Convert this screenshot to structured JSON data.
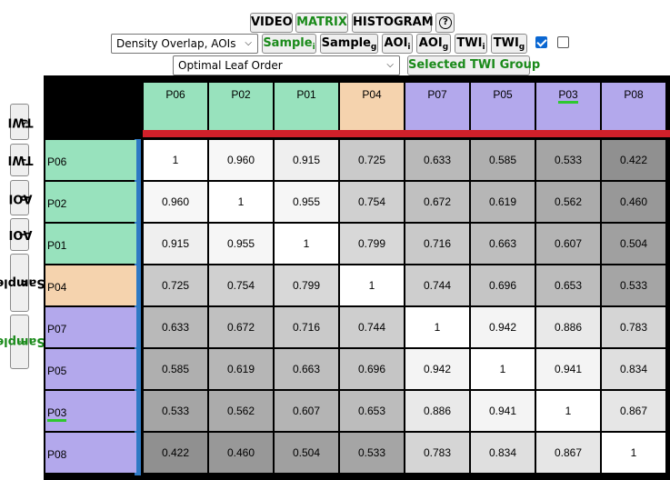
{
  "toolbar": {
    "video": "VIDEO",
    "matrix": "MATRIX",
    "histogram": "HISTOGRAM",
    "help": "?",
    "select_metric": "Density Overlap, AOIs",
    "sample_i": "Sample",
    "sample_g": "Sample",
    "aoi_i": "AOI",
    "aoi_g": "AOI",
    "twi_i": "TWI",
    "twi_g": "TWI",
    "sub_i": "i",
    "sub_g": "g",
    "checkbox1_checked": true,
    "checkbox2_checked": false,
    "select_order": "Optimal Leaf Order",
    "selected_group": "Selected TWI Group"
  },
  "colors": {
    "green": "#98e2bd",
    "orange": "#f5d3ae",
    "purple": "#b3a8ec",
    "red_bar": "#d0202a",
    "blue_bar": "#2f79c4",
    "active_text": "#1a8a1a"
  },
  "matrix": {
    "labels": [
      "P06",
      "P02",
      "P01",
      "P04",
      "P07",
      "P05",
      "P03",
      "P08"
    ],
    "groups": [
      "green",
      "green",
      "green",
      "orange",
      "purple",
      "purple",
      "purple",
      "purple"
    ],
    "highlighted": "P03",
    "values": [
      [
        "1",
        "0.960",
        "0.915",
        "0.725",
        "0.633",
        "0.585",
        "0.533",
        "0.422"
      ],
      [
        "0.960",
        "1",
        "0.955",
        "0.754",
        "0.672",
        "0.619",
        "0.562",
        "0.460"
      ],
      [
        "0.915",
        "0.955",
        "1",
        "0.799",
        "0.716",
        "0.663",
        "0.607",
        "0.504"
      ],
      [
        "0.725",
        "0.754",
        "0.799",
        "1",
        "0.744",
        "0.696",
        "0.653",
        "0.533"
      ],
      [
        "0.633",
        "0.672",
        "0.716",
        "0.744",
        "1",
        "0.942",
        "0.886",
        "0.783"
      ],
      [
        "0.585",
        "0.619",
        "0.663",
        "0.696",
        "0.942",
        "1",
        "0.941",
        "0.834"
      ],
      [
        "0.533",
        "0.562",
        "0.607",
        "0.653",
        "0.886",
        "0.941",
        "1",
        "0.867"
      ],
      [
        "0.422",
        "0.460",
        "0.504",
        "0.533",
        "0.783",
        "0.834",
        "0.867",
        "1"
      ]
    ]
  }
}
